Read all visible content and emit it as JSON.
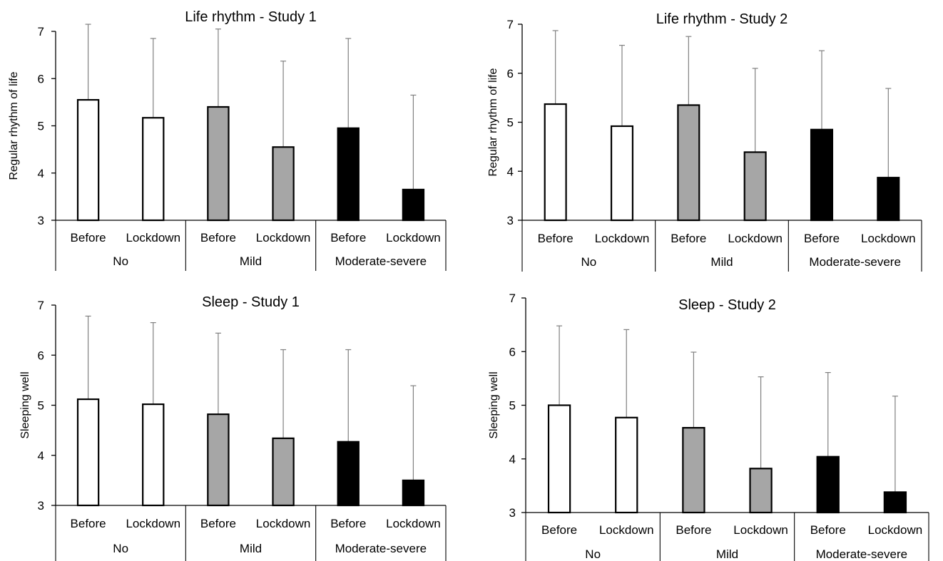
{
  "colors": {
    "No": "#ffffff",
    "Mild": "#a6a6a6",
    "Moderate-severe": "#000000",
    "outline": "#000000",
    "error_bar": "#808080"
  },
  "chart_data": [
    {
      "type": "bar",
      "title": "Life rhythm - Study 1",
      "ylabel": "Regular rhythm of life",
      "ylim": [
        3,
        7
      ],
      "yticks": [
        3,
        4,
        5,
        6,
        7
      ],
      "groups": [
        "No",
        "Mild",
        "Moderate-severe"
      ],
      "categories": [
        "Before",
        "Lockdown",
        "Before",
        "Lockdown",
        "Before",
        "Lockdown"
      ],
      "values": [
        5.55,
        5.17,
        5.4,
        4.55,
        4.95,
        3.65
      ],
      "error_upper": [
        7.15,
        6.85,
        7.05,
        6.37,
        6.85,
        5.65
      ],
      "error_bars": "upper",
      "grid": false
    },
    {
      "type": "bar",
      "title": "Life rhythm - Study 2",
      "ylabel": "Regular rhythm of life",
      "ylim": [
        3,
        7
      ],
      "yticks": [
        3,
        4,
        5,
        6,
        7
      ],
      "groups": [
        "No",
        "Mild",
        "Moderate-severe"
      ],
      "categories": [
        "Before",
        "Lockdown",
        "Before",
        "Lockdown",
        "Before",
        "Lockdown"
      ],
      "values": [
        5.37,
        4.92,
        5.35,
        4.39,
        4.85,
        3.87
      ],
      "error_upper": [
        6.87,
        6.57,
        6.75,
        6.1,
        6.46,
        5.69
      ],
      "error_bars": "upper",
      "grid": false
    },
    {
      "type": "bar",
      "title": "Sleep - Study 1",
      "ylabel": "Sleeping well",
      "ylim": [
        3,
        7
      ],
      "yticks": [
        3,
        4,
        5,
        6,
        7
      ],
      "groups": [
        "No",
        "Mild",
        "Moderate-severe"
      ],
      "categories": [
        "Before",
        "Lockdown",
        "Before",
        "Lockdown",
        "Before",
        "Lockdown"
      ],
      "values": [
        5.12,
        5.02,
        4.82,
        4.34,
        4.27,
        3.5
      ],
      "error_upper": [
        6.78,
        6.65,
        6.44,
        6.11,
        6.11,
        5.39
      ],
      "error_bars": "upper",
      "grid": false
    },
    {
      "type": "bar",
      "title": "Sleep - Study 2",
      "ylabel": "Sleeping well",
      "ylim": [
        3,
        7
      ],
      "yticks": [
        3,
        4,
        5,
        6,
        7
      ],
      "groups": [
        "No",
        "Mild",
        "Moderate-severe"
      ],
      "categories": [
        "Before",
        "Lockdown",
        "Before",
        "Lockdown",
        "Before",
        "Lockdown"
      ],
      "values": [
        5.0,
        4.77,
        4.58,
        3.82,
        4.04,
        3.38
      ],
      "error_upper": [
        6.48,
        6.41,
        5.99,
        5.53,
        5.61,
        5.17
      ],
      "error_bars": "upper",
      "grid": false
    }
  ]
}
